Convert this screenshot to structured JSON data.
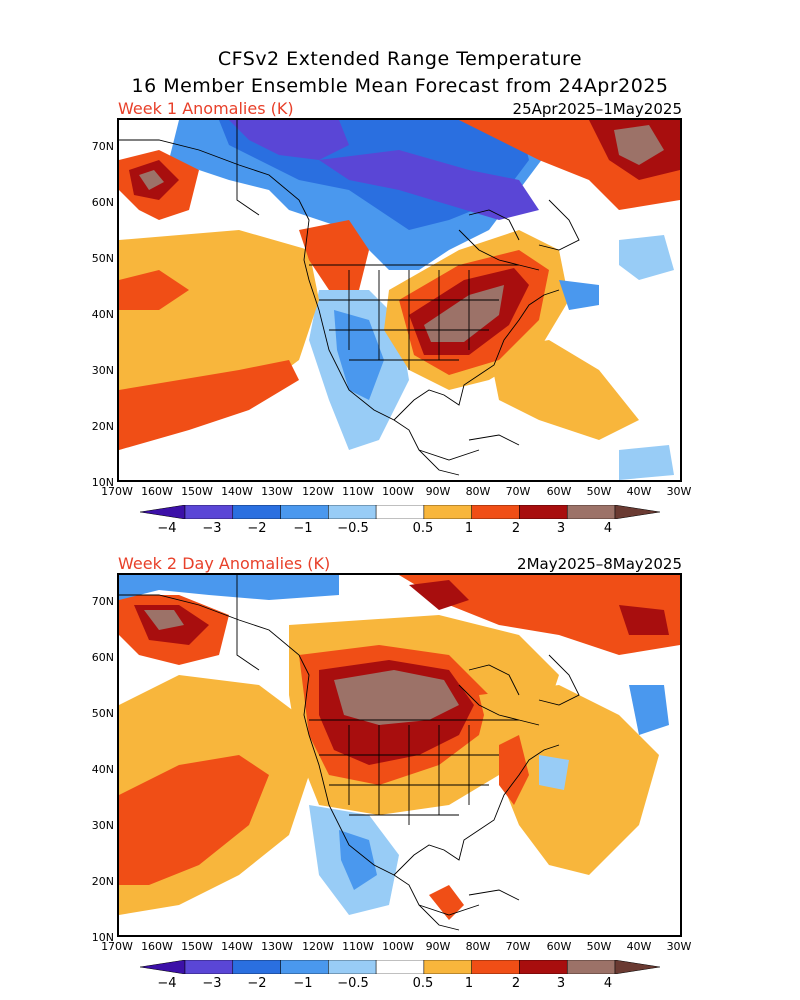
{
  "header": {
    "title_line1": "CFSv2 Extended Range Temperature",
    "title_line2": "16 Member Ensemble Mean Forecast from 24Apr2025"
  },
  "panels": [
    {
      "label": "Week 1 Anomalies (K)",
      "dates": "25Apr2025–1May2025"
    },
    {
      "label": "Week 2 Day Anomalies (K)",
      "dates": "2May2025–8May2025"
    }
  ],
  "axes": {
    "lat_labels": [
      "70N",
      "60N",
      "50N",
      "40N",
      "30N",
      "20N",
      "10N"
    ],
    "lon_labels": [
      "170W",
      "160W",
      "150W",
      "140W",
      "130W",
      "120W",
      "110W",
      "100W",
      "90W",
      "80W",
      "70W",
      "60W",
      "50W",
      "40W",
      "30W"
    ]
  },
  "colorbar": {
    "labels": [
      "−4",
      "−3",
      "−2",
      "−1",
      "−0.5",
      "0.5",
      "1",
      "2",
      "3",
      "4"
    ],
    "colors": [
      "#3c10a8",
      "#5a46d6",
      "#2a6fe0",
      "#4a98ee",
      "#98ccf6",
      "#ffffff",
      "#f8b63c",
      "#f04e16",
      "#a80e0e",
      "#9c7268",
      "#6a3a32"
    ],
    "label_color": "#e8402a"
  }
}
